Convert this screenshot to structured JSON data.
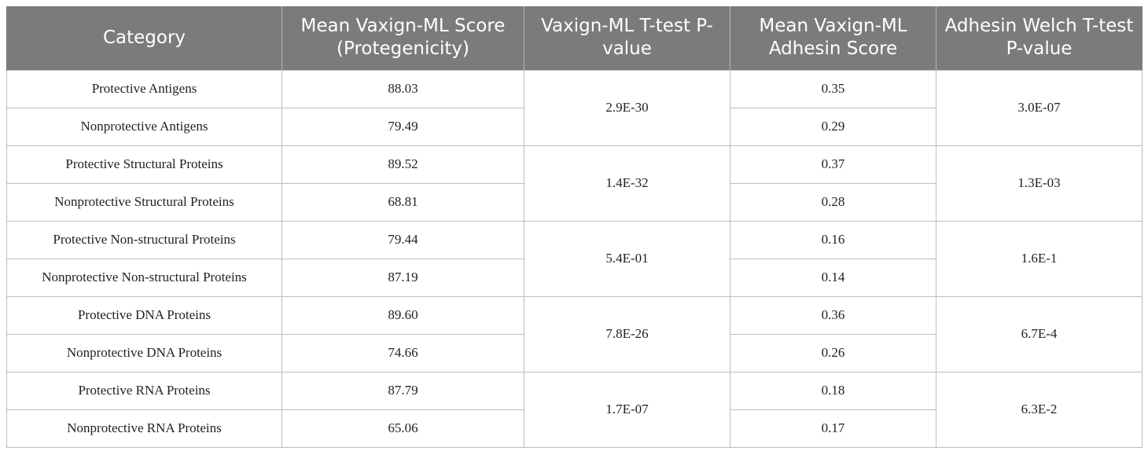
{
  "table": {
    "headers": [
      "Category",
      "Mean Vaxign-ML Score (Protegenicity)",
      "Vaxign-ML T-test P-value",
      "Mean Vaxign-ML Adhesin Score",
      "Adhesin Welch T-test P-value"
    ],
    "groups": [
      {
        "rows": [
          {
            "category": "Protective Antigens",
            "score": "88.03",
            "adhesin": "0.35"
          },
          {
            "category": "Nonprotective Antigens",
            "score": "79.49",
            "adhesin": "0.29"
          }
        ],
        "ttest": "2.9E-30",
        "welch": "3.0E-07"
      },
      {
        "rows": [
          {
            "category": "Protective Structural Proteins",
            "score": "89.52",
            "adhesin": "0.37"
          },
          {
            "category": "Nonprotective Structural Proteins",
            "score": "68.81",
            "adhesin": "0.28"
          }
        ],
        "ttest": "1.4E-32",
        "welch": "1.3E-03"
      },
      {
        "rows": [
          {
            "category": "Protective Non-structural Proteins",
            "score": "79.44",
            "adhesin": "0.16"
          },
          {
            "category": "Nonprotective Non-structural Proteins",
            "score": "87.19",
            "adhesin": "0.14"
          }
        ],
        "ttest": "5.4E-01",
        "welch": "1.6E-1"
      },
      {
        "rows": [
          {
            "category": "Protective DNA Proteins",
            "score": "89.60",
            "adhesin": "0.36"
          },
          {
            "category": "Nonprotective DNA Proteins",
            "score": "74.66",
            "adhesin": "0.26"
          }
        ],
        "ttest": "7.8E-26",
        "welch": "6.7E-4"
      },
      {
        "rows": [
          {
            "category": "Protective RNA Proteins",
            "score": "87.79",
            "adhesin": "0.18"
          },
          {
            "category": "Nonprotective RNA Proteins",
            "score": "65.06",
            "adhesin": "0.17"
          }
        ],
        "ttest": "1.7E-07",
        "welch": "6.3E-2"
      }
    ]
  },
  "colors": {
    "header_bg": "#7a7c7b",
    "header_text": "#ffffff",
    "grid_line": "#bdbdbd"
  }
}
